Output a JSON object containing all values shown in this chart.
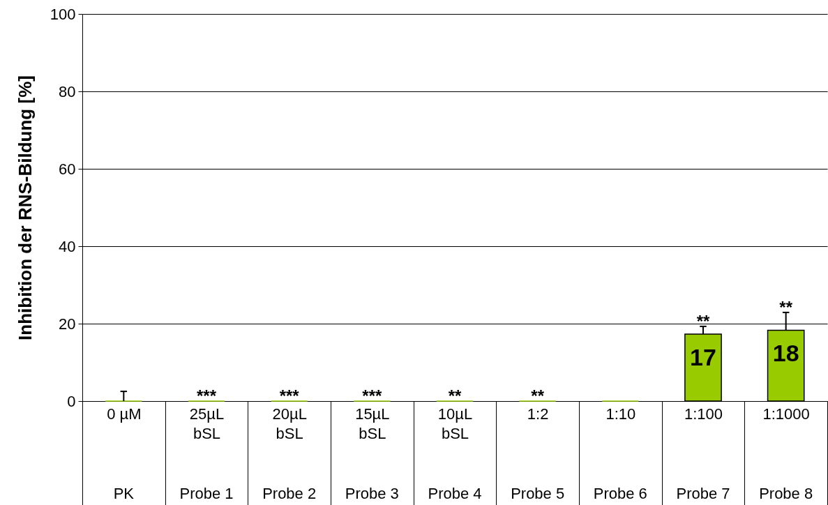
{
  "chart_data": {
    "type": "bar",
    "ylabel": "Inhibition der RNS-Bildung [%]",
    "categories": [
      "0 µM\n\nPK",
      "25µL\nbSL\nProbe 1",
      "20µL\nbSL\nProbe 2",
      "15µL\nbSL\nProbe 3",
      "10µL\nbSL\nProbe 4",
      "1:2\n\nProbe 5",
      "1:10\n\nProbe 6",
      "1:100\n\nProbe 7",
      "1:1000\n\nProbe 8"
    ],
    "values": [
      0,
      0,
      0,
      0,
      0,
      0,
      0,
      17.3,
      18.3
    ],
    "errors": [
      [
        0,
        2.5
      ],
      null,
      null,
      null,
      null,
      null,
      null,
      [
        17.3,
        19.3
      ],
      [
        18.3,
        22.9
      ]
    ],
    "value_labels": [
      null,
      null,
      null,
      null,
      null,
      null,
      null,
      "17",
      "18"
    ],
    "color": "#99cc00",
    "ylim": [
      0,
      100
    ],
    "yticks": [
      0,
      20,
      40,
      60,
      80,
      100
    ],
    "grid": "y",
    "annotations": [
      {
        "text": "***",
        "x": "25µL\nbSL\nProbe 1",
        "y": 0
      },
      {
        "text": "***",
        "x": "20µL\nbSL\nProbe 2",
        "y": 0
      },
      {
        "text": "***",
        "x": "15µL\nbSL\nProbe 3",
        "y": 0
      },
      {
        "text": "**",
        "x": "10µL\nbSL\nProbe 4",
        "y": 0
      },
      {
        "text": "**",
        "x": "1:2\n\nProbe 5",
        "y": 0
      },
      {
        "text": "**",
        "x": "1:100\n\nProbe 7",
        "y": 19.3
      },
      {
        "text": "**",
        "x": "1:1000\n\nProbe 8",
        "y": 22.9
      }
    ]
  }
}
